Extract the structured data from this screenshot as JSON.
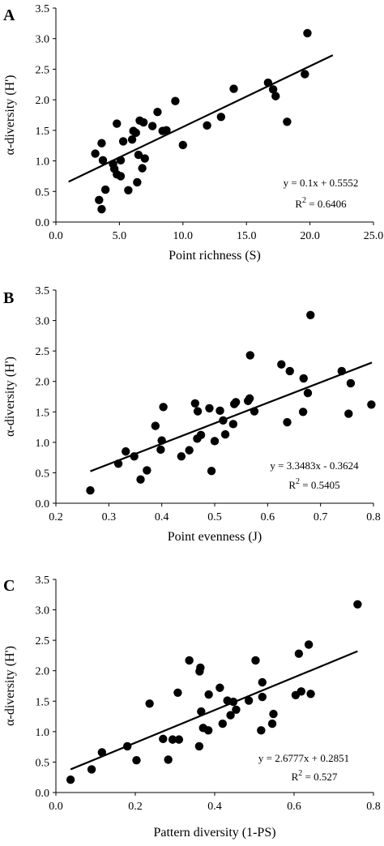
{
  "chart_data": [
    {
      "type": "scatter",
      "panel_label": "A",
      "xlabel": "Point richness (S)",
      "ylabel": "α-diversity (H')",
      "xlim": [
        0.0,
        25.0
      ],
      "ylim": [
        0.0,
        3.5
      ],
      "xticks": [
        "0.0",
        "5.0",
        "10.0",
        "15.0",
        "20.0",
        "25.0"
      ],
      "yticks": [
        "0.0",
        "0.5",
        "1.0",
        "1.5",
        "2.0",
        "2.5",
        "3.0",
        "3.5"
      ],
      "equation": "y = 0.1x + 0.5552",
      "r2_label": "R",
      "r2_sup": "2",
      "r2_value": " = 0.6406",
      "trendline": {
        "x": [
          1.0,
          21.8
        ],
        "y": [
          0.66,
          2.73
        ]
      },
      "points": [
        {
          "x": 3.1,
          "y": 1.12
        },
        {
          "x": 3.4,
          "y": 0.36
        },
        {
          "x": 3.6,
          "y": 0.21
        },
        {
          "x": 3.6,
          "y": 1.29
        },
        {
          "x": 3.7,
          "y": 1.01
        },
        {
          "x": 3.9,
          "y": 0.53
        },
        {
          "x": 4.5,
          "y": 0.95
        },
        {
          "x": 4.6,
          "y": 0.87
        },
        {
          "x": 4.8,
          "y": 1.61
        },
        {
          "x": 4.8,
          "y": 0.78
        },
        {
          "x": 5.1,
          "y": 0.75
        },
        {
          "x": 5.1,
          "y": 1.01
        },
        {
          "x": 5.3,
          "y": 1.32
        },
        {
          "x": 5.7,
          "y": 0.52
        },
        {
          "x": 6.0,
          "y": 1.35
        },
        {
          "x": 6.1,
          "y": 1.49
        },
        {
          "x": 6.3,
          "y": 1.46
        },
        {
          "x": 6.4,
          "y": 0.65
        },
        {
          "x": 6.5,
          "y": 1.1
        },
        {
          "x": 6.6,
          "y": 1.66
        },
        {
          "x": 6.8,
          "y": 0.88
        },
        {
          "x": 6.9,
          "y": 1.63
        },
        {
          "x": 7.0,
          "y": 1.04
        },
        {
          "x": 7.6,
          "y": 1.57
        },
        {
          "x": 8.0,
          "y": 1.8
        },
        {
          "x": 8.4,
          "y": 1.49
        },
        {
          "x": 8.7,
          "y": 1.5
        },
        {
          "x": 9.4,
          "y": 1.98
        },
        {
          "x": 10.0,
          "y": 1.26
        },
        {
          "x": 11.9,
          "y": 1.58
        },
        {
          "x": 13.0,
          "y": 1.72
        },
        {
          "x": 14.0,
          "y": 2.18
        },
        {
          "x": 16.7,
          "y": 2.28
        },
        {
          "x": 17.1,
          "y": 2.17
        },
        {
          "x": 17.3,
          "y": 2.06
        },
        {
          "x": 18.2,
          "y": 1.64
        },
        {
          "x": 19.6,
          "y": 2.42
        },
        {
          "x": 19.8,
          "y": 3.09
        }
      ]
    },
    {
      "type": "scatter",
      "panel_label": "B",
      "xlabel": "Point evenness (J)",
      "ylabel": "α-diversity (H')",
      "xlim": [
        0.2,
        0.8
      ],
      "ylim": [
        0.0,
        3.5
      ],
      "xticks": [
        "0.2",
        "0.3",
        "0.4",
        "0.5",
        "0.6",
        "0.7",
        "0.8"
      ],
      "yticks": [
        "0.0",
        "0.5",
        "1.0",
        "1.5",
        "2.0",
        "2.5",
        "3.0",
        "3.5"
      ],
      "equation": "y = 3.3483x - 0.3624",
      "r2_label": "R",
      "r2_sup": "2",
      "r2_value": " = 0.5405",
      "trendline": {
        "x": [
          0.265,
          0.797
        ],
        "y": [
          0.525,
          2.31
        ]
      },
      "points": [
        {
          "x": 0.265,
          "y": 0.21
        },
        {
          "x": 0.318,
          "y": 0.65
        },
        {
          "x": 0.332,
          "y": 0.85
        },
        {
          "x": 0.348,
          "y": 0.77
        },
        {
          "x": 0.36,
          "y": 0.39
        },
        {
          "x": 0.372,
          "y": 0.54
        },
        {
          "x": 0.388,
          "y": 1.27
        },
        {
          "x": 0.398,
          "y": 0.88
        },
        {
          "x": 0.4,
          "y": 1.03
        },
        {
          "x": 0.403,
          "y": 1.58
        },
        {
          "x": 0.437,
          "y": 0.77
        },
        {
          "x": 0.452,
          "y": 0.87
        },
        {
          "x": 0.463,
          "y": 1.64
        },
        {
          "x": 0.467,
          "y": 1.06
        },
        {
          "x": 0.468,
          "y": 1.51
        },
        {
          "x": 0.474,
          "y": 1.12
        },
        {
          "x": 0.49,
          "y": 1.56
        },
        {
          "x": 0.494,
          "y": 0.53
        },
        {
          "x": 0.5,
          "y": 1.02
        },
        {
          "x": 0.51,
          "y": 1.52
        },
        {
          "x": 0.516,
          "y": 1.36
        },
        {
          "x": 0.52,
          "y": 1.13
        },
        {
          "x": 0.535,
          "y": 1.3
        },
        {
          "x": 0.537,
          "y": 1.63
        },
        {
          "x": 0.54,
          "y": 1.66
        },
        {
          "x": 0.563,
          "y": 1.68
        },
        {
          "x": 0.566,
          "y": 1.72
        },
        {
          "x": 0.567,
          "y": 2.43
        },
        {
          "x": 0.575,
          "y": 1.51
        },
        {
          "x": 0.626,
          "y": 2.28
        },
        {
          "x": 0.637,
          "y": 1.33
        },
        {
          "x": 0.642,
          "y": 2.17
        },
        {
          "x": 0.667,
          "y": 1.5
        },
        {
          "x": 0.668,
          "y": 2.05
        },
        {
          "x": 0.676,
          "y": 1.81
        },
        {
          "x": 0.681,
          "y": 3.09
        },
        {
          "x": 0.74,
          "y": 2.17
        },
        {
          "x": 0.753,
          "y": 1.47
        },
        {
          "x": 0.757,
          "y": 1.97
        },
        {
          "x": 0.796,
          "y": 1.62
        }
      ]
    },
    {
      "type": "scatter",
      "panel_label": "C",
      "xlabel": "Pattern diversity (1-PS)",
      "ylabel": "α-diversity (H')",
      "xlim": [
        0.0,
        0.8
      ],
      "ylim": [
        0.0,
        3.5
      ],
      "xticks": [
        "0.0",
        "0.2",
        "0.4",
        "0.6",
        "0.8"
      ],
      "yticks": [
        "0.0",
        "0.5",
        "1.0",
        "1.5",
        "2.0",
        "2.5",
        "3.0",
        "3.5"
      ],
      "equation": "y = 2.6777x + 0.2851",
      "r2_label": "R",
      "r2_sup": "2",
      "r2_value": " = 0.527",
      "trendline": {
        "x": [
          0.037,
          0.76
        ],
        "y": [
          0.38,
          2.32
        ]
      },
      "points": [
        {
          "x": 0.037,
          "y": 0.21
        },
        {
          "x": 0.09,
          "y": 0.38
        },
        {
          "x": 0.116,
          "y": 0.66
        },
        {
          "x": 0.18,
          "y": 0.76
        },
        {
          "x": 0.203,
          "y": 0.53
        },
        {
          "x": 0.236,
          "y": 1.46
        },
        {
          "x": 0.27,
          "y": 0.88
        },
        {
          "x": 0.283,
          "y": 0.54
        },
        {
          "x": 0.294,
          "y": 0.87
        },
        {
          "x": 0.307,
          "y": 1.64
        },
        {
          "x": 0.31,
          "y": 0.87
        },
        {
          "x": 0.336,
          "y": 2.17
        },
        {
          "x": 0.361,
          "y": 0.76
        },
        {
          "x": 0.362,
          "y": 1.99
        },
        {
          "x": 0.364,
          "y": 2.05
        },
        {
          "x": 0.366,
          "y": 1.33
        },
        {
          "x": 0.371,
          "y": 1.06
        },
        {
          "x": 0.384,
          "y": 1.02
        },
        {
          "x": 0.385,
          "y": 1.61
        },
        {
          "x": 0.413,
          "y": 1.72
        },
        {
          "x": 0.42,
          "y": 1.13
        },
        {
          "x": 0.432,
          "y": 1.51
        },
        {
          "x": 0.44,
          "y": 1.27
        },
        {
          "x": 0.447,
          "y": 1.49
        },
        {
          "x": 0.454,
          "y": 1.36
        },
        {
          "x": 0.486,
          "y": 1.51
        },
        {
          "x": 0.503,
          "y": 2.17
        },
        {
          "x": 0.517,
          "y": 1.02
        },
        {
          "x": 0.52,
          "y": 1.81
        },
        {
          "x": 0.52,
          "y": 1.57
        },
        {
          "x": 0.545,
          "y": 1.13
        },
        {
          "x": 0.548,
          "y": 1.29
        },
        {
          "x": 0.604,
          "y": 1.6
        },
        {
          "x": 0.612,
          "y": 2.28
        },
        {
          "x": 0.618,
          "y": 1.66
        },
        {
          "x": 0.637,
          "y": 2.43
        },
        {
          "x": 0.642,
          "y": 1.62
        },
        {
          "x": 0.76,
          "y": 3.09
        }
      ]
    }
  ]
}
